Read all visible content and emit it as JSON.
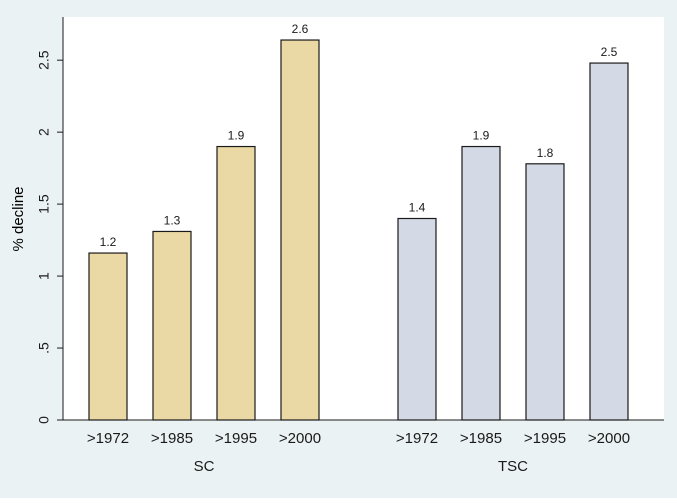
{
  "colors": {
    "outer_background": "#eaf2f3",
    "plot_background": "#ffffff",
    "sc_bar_fill": "#ead9a4",
    "tsc_bar_fill": "#d3dae6",
    "bar_stroke": "#1a1a1a",
    "text": "#1a1a1a"
  },
  "chart_data": {
    "type": "bar",
    "ylabel": "% decline",
    "ylim": [
      0,
      2.8
    ],
    "yticks": [
      0,
      0.5,
      1,
      1.5,
      2,
      2.5
    ],
    "ytick_labels": [
      "0",
      ".5",
      "1",
      "1.5",
      "2",
      "2.5"
    ],
    "grid": false,
    "groups": [
      {
        "name": "SC",
        "categories": [
          ">1972",
          ">1985",
          ">1995",
          ">2000"
        ],
        "values": [
          1.16,
          1.31,
          1.9,
          2.64
        ],
        "labels": [
          "1.2",
          "1.3",
          "1.9",
          "2.6"
        ],
        "color": "#ead9a4"
      },
      {
        "name": "TSC",
        "categories": [
          ">1972",
          ">1985",
          ">1995",
          ">2000"
        ],
        "values": [
          1.4,
          1.9,
          1.78,
          2.48
        ],
        "labels": [
          "1.4",
          "1.9",
          "1.8",
          "2.5"
        ],
        "color": "#d3dae6"
      }
    ]
  }
}
